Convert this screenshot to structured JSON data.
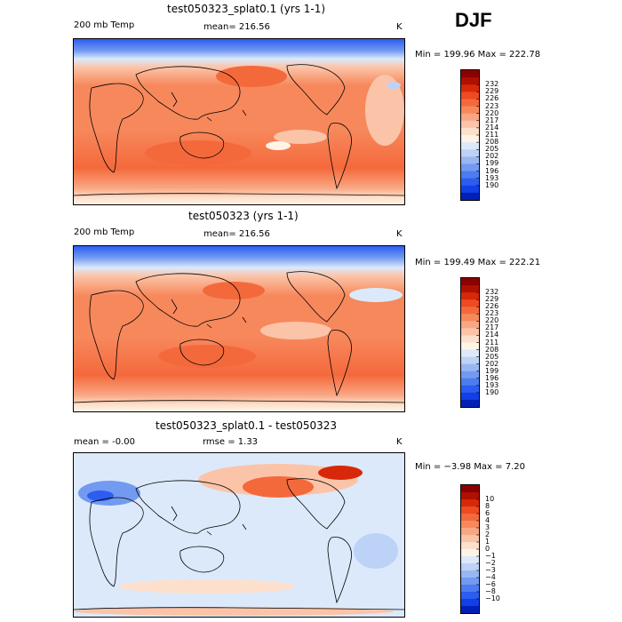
{
  "season": "DJF",
  "panels": [
    {
      "title": "test050323_splat0.1 (yrs 1-1)",
      "left_label": "200 mb Temp",
      "center_label": "mean= 216.56",
      "units": "K",
      "minmax": "Min = 199.96  Max = 222.78",
      "colorbar_ticks": [
        "232",
        "229",
        "226",
        "223",
        "220",
        "217",
        "214",
        "211",
        "208",
        "205",
        "202",
        "199",
        "196",
        "193",
        "190"
      ],
      "colorbar_colors": [
        "#8b0000",
        "#b01000",
        "#d8280a",
        "#ef4a22",
        "#f4693c",
        "#f7885c",
        "#f9a683",
        "#fbc4a8",
        "#fde0cc",
        "#fff3e6",
        "#dce9fb",
        "#bcd2f7",
        "#98b7f2",
        "#729af0",
        "#4c7cef",
        "#2c5df0",
        "#123fe6",
        "#0020b8"
      ]
    },
    {
      "title": "test050323 (yrs 1-1)",
      "left_label": "200 mb Temp",
      "center_label": "mean= 216.56",
      "units": "K",
      "minmax": "Min = 199.49  Max = 222.21",
      "colorbar_ticks": [
        "232",
        "229",
        "226",
        "223",
        "220",
        "217",
        "214",
        "211",
        "208",
        "205",
        "202",
        "199",
        "196",
        "193",
        "190"
      ],
      "colorbar_colors": [
        "#8b0000",
        "#b01000",
        "#d8280a",
        "#ef4a22",
        "#f4693c",
        "#f7885c",
        "#f9a683",
        "#fbc4a8",
        "#fde0cc",
        "#fff3e6",
        "#dce9fb",
        "#bcd2f7",
        "#98b7f2",
        "#729af0",
        "#4c7cef",
        "#2c5df0",
        "#123fe6",
        "#0020b8"
      ]
    },
    {
      "title": "test050323_splat0.1 - test050323",
      "left_label": "mean =   -0.00",
      "center_label": "rmse =    1.33",
      "units": "K",
      "minmax": "Min =  −3.98 Max =    7.20",
      "colorbar_ticks": [
        "10",
        "8",
        "6",
        "4",
        "3",
        "2",
        "1",
        "0",
        "−1",
        "−2",
        "−3",
        "−4",
        "−6",
        "−8",
        "−10"
      ],
      "colorbar_colors": [
        "#8b0000",
        "#b01000",
        "#d8280a",
        "#ef4a22",
        "#f4693c",
        "#f7885c",
        "#f9a683",
        "#fbc4a8",
        "#fde0cc",
        "#fff3e6",
        "#dce9fb",
        "#bcd2f7",
        "#98b7f2",
        "#729af0",
        "#4c7cef",
        "#2c5df0",
        "#123fe6",
        "#0020b8"
      ]
    }
  ],
  "chart_data": [
    {
      "type": "heatmap",
      "title": "test050323_splat0.1 (yrs 1-1)",
      "variable": "200 mb Temp",
      "units": "K",
      "mean": 216.56,
      "min": 199.96,
      "max": 222.78,
      "colorbar_levels": [
        190,
        193,
        196,
        199,
        202,
        205,
        208,
        211,
        214,
        217,
        220,
        223,
        226,
        229,
        232
      ],
      "description": "Global lat-lon map; coldest (blue, ~190-205 K) near both poles, warmest (red, ~220-223 K) over subtropical Pacific, Australia and southern mid-latitudes"
    },
    {
      "type": "heatmap",
      "title": "test050323 (yrs 1-1)",
      "variable": "200 mb Temp",
      "units": "K",
      "mean": 216.56,
      "min": 199.49,
      "max": 222.21,
      "colorbar_levels": [
        190,
        193,
        196,
        199,
        202,
        205,
        208,
        211,
        214,
        217,
        220,
        223,
        226,
        229,
        232
      ],
      "description": "Global lat-lon map; cold poles (blue), warm band over tropics/subtropics with maxima near Australia and western Pacific"
    },
    {
      "type": "heatmap",
      "title": "test050323_splat0.1 - test050323",
      "variable": "difference",
      "units": "K",
      "mean": -0.0,
      "rmse": 1.33,
      "min": -3.98,
      "max": 7.2,
      "colorbar_levels": [
        -10,
        -8,
        -6,
        -4,
        -3,
        -2,
        -1,
        0,
        1,
        2,
        3,
        4,
        6,
        8,
        10
      ],
      "description": "Difference map; strong positive anomaly (red, up to ~7 K) over North Pacific/Alaska/Arctic, negative (blue, ~-3 to -4 K) over North Atlantic/Europe, near-zero elsewhere"
    }
  ]
}
